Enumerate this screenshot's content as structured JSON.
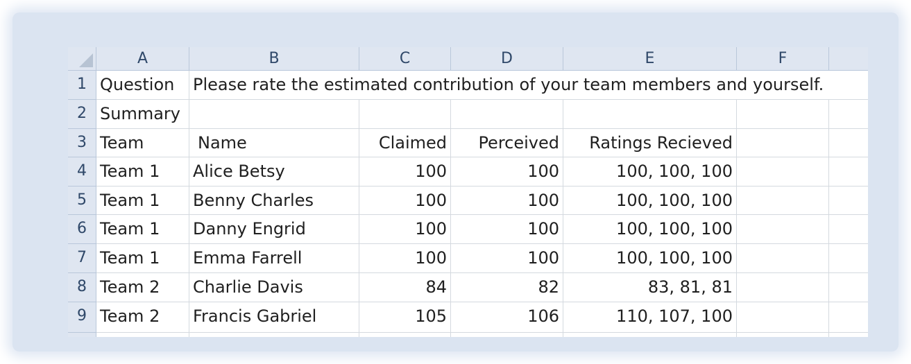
{
  "columns": [
    "A",
    "B",
    "C",
    "D",
    "E",
    "F"
  ],
  "rows": [
    "1",
    "2",
    "3",
    "4",
    "5",
    "6",
    "7",
    "8",
    "9"
  ],
  "cells": {
    "r1": {
      "a": "Question",
      "b": "Please rate the estimated contribution of your team members and yourself."
    },
    "r2": {
      "a": "Summary"
    },
    "r3": {
      "a": "Team",
      "b": "Name",
      "c": "Claimed",
      "d": "Perceived",
      "e": "Ratings Recieved"
    },
    "r4": {
      "a": "Team 1",
      "b": "Alice Betsy",
      "c": "100",
      "d": "100",
      "e": "100, 100, 100"
    },
    "r5": {
      "a": "Team 1",
      "b": "Benny Charles",
      "c": "100",
      "d": "100",
      "e": "100, 100, 100"
    },
    "r6": {
      "a": "Team 1",
      "b": "Danny Engrid",
      "c": "100",
      "d": "100",
      "e": "100, 100, 100"
    },
    "r7": {
      "a": "Team 1",
      "b": "Emma Farrell",
      "c": "100",
      "d": "100",
      "e": "100, 100, 100"
    },
    "r8": {
      "a": "Team 2",
      "b": "Charlie Davis",
      "c": "84",
      "d": "82",
      "e": "83, 81, 81"
    },
    "r9": {
      "a": "Team 2",
      "b": "Francis Gabriel",
      "c": "105",
      "d": "106",
      "e": "110, 107, 100"
    }
  }
}
